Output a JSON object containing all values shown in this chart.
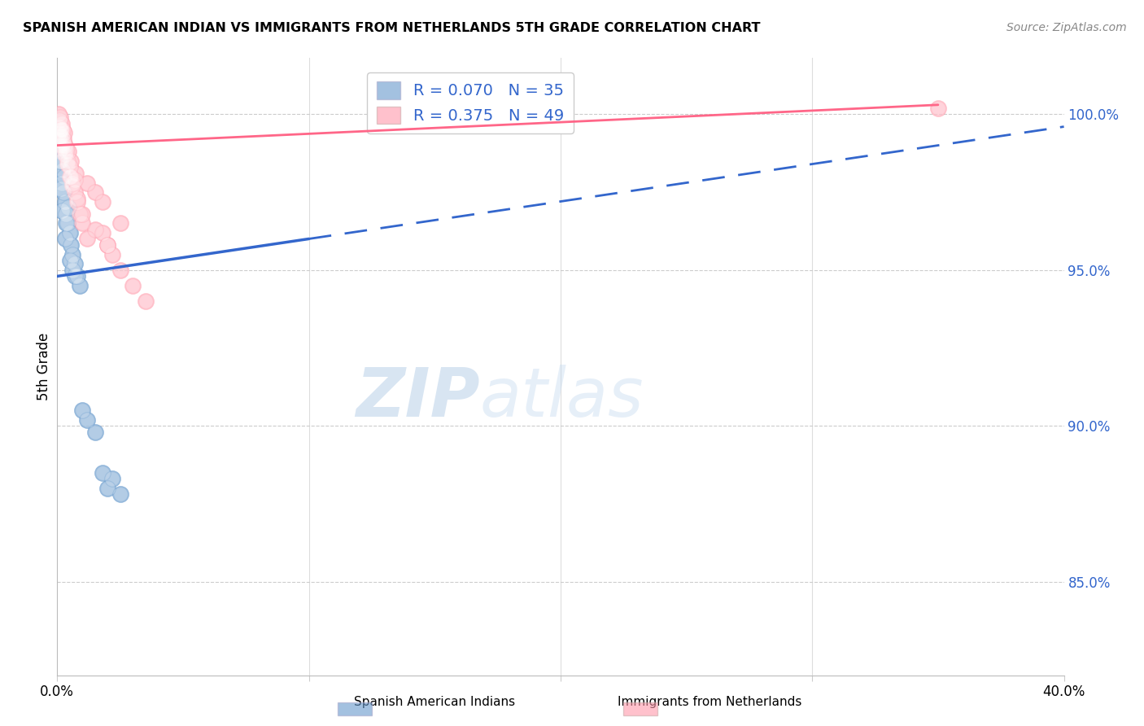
{
  "title": "SPANISH AMERICAN INDIAN VS IMMIGRANTS FROM NETHERLANDS 5TH GRADE CORRELATION CHART",
  "source": "Source: ZipAtlas.com",
  "ylabel": "5th Grade",
  "ylabel_right_ticks": [
    85.0,
    90.0,
    95.0,
    100.0
  ],
  "xmin": 0.0,
  "xmax": 40.0,
  "ymin": 82.0,
  "ymax": 101.8,
  "blue_R": 0.07,
  "blue_N": 35,
  "pink_R": 0.375,
  "pink_N": 49,
  "blue_color": "#6699CC",
  "pink_color": "#FF99AA",
  "blue_label": "Spanish American Indians",
  "pink_label": "Immigrants from Netherlands",
  "blue_scatter_x": [
    0.05,
    0.08,
    0.1,
    0.12,
    0.15,
    0.18,
    0.2,
    0.22,
    0.25,
    0.28,
    0.3,
    0.35,
    0.4,
    0.45,
    0.5,
    0.55,
    0.6,
    0.7,
    0.8,
    0.9,
    0.1,
    0.15,
    0.2,
    0.3,
    0.5,
    0.7,
    1.0,
    1.2,
    1.5,
    1.8,
    2.0,
    2.2,
    2.5,
    0.35,
    0.6
  ],
  "blue_scatter_y": [
    99.2,
    98.8,
    99.0,
    99.3,
    98.5,
    98.9,
    97.8,
    98.2,
    97.5,
    98.0,
    97.2,
    96.8,
    96.5,
    97.0,
    96.2,
    95.8,
    95.5,
    95.2,
    94.8,
    94.5,
    98.5,
    97.6,
    96.9,
    96.0,
    95.3,
    94.8,
    90.5,
    90.2,
    89.8,
    88.5,
    88.0,
    88.3,
    87.8,
    96.5,
    95.0
  ],
  "pink_scatter_x": [
    0.05,
    0.08,
    0.1,
    0.12,
    0.15,
    0.18,
    0.2,
    0.22,
    0.25,
    0.28,
    0.3,
    0.35,
    0.4,
    0.45,
    0.5,
    0.55,
    0.6,
    0.7,
    0.8,
    0.9,
    1.0,
    1.2,
    1.5,
    1.8,
    2.0,
    2.2,
    2.5,
    3.0,
    3.5,
    0.1,
    0.2,
    0.3,
    0.4,
    0.5,
    0.6,
    0.8,
    1.0,
    1.5,
    2.0,
    0.15,
    0.25,
    0.35,
    0.55,
    0.75,
    1.2,
    1.8,
    2.5,
    35.0,
    0.7
  ],
  "pink_scatter_y": [
    100.0,
    99.8,
    99.6,
    99.9,
    99.5,
    99.7,
    99.3,
    99.5,
    99.2,
    99.4,
    99.0,
    98.8,
    98.5,
    98.8,
    98.3,
    98.0,
    97.8,
    97.5,
    97.2,
    96.8,
    96.5,
    96.0,
    97.5,
    96.2,
    95.8,
    95.5,
    95.0,
    94.5,
    94.0,
    99.4,
    99.0,
    98.7,
    98.4,
    98.0,
    97.7,
    97.3,
    96.8,
    96.3,
    95.8,
    99.5,
    99.1,
    98.9,
    98.5,
    98.1,
    97.8,
    97.2,
    96.5,
    100.2,
    97.9
  ],
  "blue_line_x0": 0.0,
  "blue_line_y0": 94.8,
  "blue_line_x1": 10.0,
  "blue_line_y1": 96.0,
  "blue_dash_x0": 10.0,
  "blue_dash_y0": 96.0,
  "blue_dash_x1": 40.0,
  "blue_dash_y1": 99.6,
  "pink_line_x0": 0.0,
  "pink_line_y0": 99.0,
  "pink_line_x1": 35.0,
  "pink_line_y1": 100.3,
  "watermark_text": "ZIPatlas",
  "background_color": "#FFFFFF"
}
